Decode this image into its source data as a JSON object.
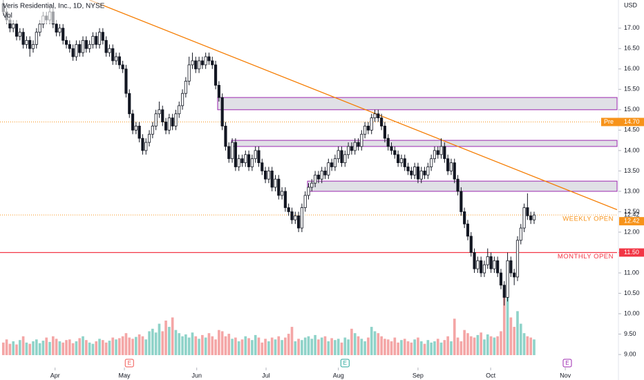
{
  "chart_data": {
    "type": "candlestick",
    "title": "Veris Residential, Inc., 1D, NYSE",
    "volume_title": "Vol",
    "y_axis_label": "USD",
    "up_color": "#ffffff",
    "down_color": "#131722",
    "volume_up_color": "#8fd3c9",
    "volume_down_color": "#f4a6a6",
    "xlim": [
      -1,
      185
    ],
    "ylim": [
      8.68,
      17.69
    ],
    "xticks": [
      {
        "value": 15.6,
        "label": "Apr"
      },
      {
        "value": 36.5,
        "label": "May"
      },
      {
        "value": 58.3,
        "label": "Jun"
      },
      {
        "value": 79.2,
        "label": "Jul"
      },
      {
        "value": 101,
        "label": "Aug"
      },
      {
        "value": 125,
        "label": "Sep"
      },
      {
        "value": 146.9,
        "label": "Oct"
      },
      {
        "value": 169.4,
        "label": "Nov"
      }
    ],
    "yticks": [
      {
        "value": 9,
        "label": "9.00"
      },
      {
        "value": 9.5,
        "label": "9.50"
      },
      {
        "value": 10,
        "label": "10.00"
      },
      {
        "value": 10.5,
        "label": "10.50"
      },
      {
        "value": 11,
        "label": "11.00"
      },
      {
        "value": 11.5,
        "label": "11.50"
      },
      {
        "value": 12,
        "label": "12.00"
      },
      {
        "value": 12.5,
        "label": "12.50"
      },
      {
        "value": 13,
        "label": "13.00"
      },
      {
        "value": 13.5,
        "label": "13.50"
      },
      {
        "value": 14,
        "label": "14.00"
      },
      {
        "value": 14.5,
        "label": "14.50"
      },
      {
        "value": 15,
        "label": "15.00"
      },
      {
        "value": 15.5,
        "label": "15.50"
      },
      {
        "value": 16,
        "label": "16.00"
      },
      {
        "value": 16.5,
        "label": "16.50"
      },
      {
        "value": 17,
        "label": "17.00"
      }
    ],
    "values": [
      [
        17.6,
        17.7,
        17.3,
        17.4
      ],
      [
        17.4,
        17.5,
        17.1,
        17.2
      ],
      [
        17.2,
        17.3,
        16.9,
        17.0
      ],
      [
        17.0,
        17.2,
        16.9,
        17.1
      ],
      [
        17.1,
        17.2,
        16.7,
        16.8
      ],
      [
        16.8,
        17.0,
        16.7,
        16.9
      ],
      [
        16.9,
        17.0,
        16.5,
        16.6
      ],
      [
        16.6,
        16.8,
        16.5,
        16.7
      ],
      [
        16.7,
        16.8,
        16.3,
        16.5
      ],
      [
        16.5,
        16.7,
        16.4,
        16.6
      ],
      [
        16.6,
        17.0,
        16.5,
        16.9
      ],
      [
        16.9,
        17.2,
        16.8,
        17.1
      ],
      [
        17.1,
        17.4,
        17.0,
        17.3
      ],
      [
        17.3,
        17.4,
        17.1,
        17.2
      ],
      [
        17.2,
        17.6,
        17.1,
        17.4
      ],
      [
        17.4,
        17.5,
        17.0,
        17.1
      ],
      [
        17.1,
        17.2,
        16.8,
        16.9
      ],
      [
        16.9,
        17.1,
        16.8,
        17.0
      ],
      [
        17.0,
        17.1,
        16.6,
        16.7
      ],
      [
        16.7,
        16.8,
        16.5,
        16.6
      ],
      [
        16.6,
        16.7,
        16.4,
        16.5
      ],
      [
        16.5,
        16.6,
        16.2,
        16.3
      ],
      [
        16.3,
        16.7,
        16.2,
        16.6
      ],
      [
        16.6,
        16.7,
        16.3,
        16.4
      ],
      [
        16.4,
        16.8,
        16.3,
        16.7
      ],
      [
        16.7,
        16.8,
        16.4,
        16.5
      ],
      [
        16.5,
        16.7,
        16.4,
        16.6
      ],
      [
        16.6,
        16.9,
        16.5,
        16.8
      ],
      [
        16.8,
        16.9,
        16.5,
        16.6
      ],
      [
        16.6,
        17.0,
        16.5,
        16.9
      ],
      [
        16.9,
        17.0,
        16.6,
        16.7
      ],
      [
        16.7,
        16.8,
        16.3,
        16.4
      ],
      [
        16.4,
        16.6,
        16.3,
        16.5
      ],
      [
        16.5,
        16.6,
        16.1,
        16.2
      ],
      [
        16.2,
        16.4,
        16.1,
        16.3
      ],
      [
        16.3,
        16.4,
        16.0,
        16.1
      ],
      [
        16.1,
        16.2,
        15.9,
        16.0
      ],
      [
        16.0,
        16.1,
        15.3,
        15.4
      ],
      [
        15.4,
        15.5,
        14.8,
        14.9
      ],
      [
        14.9,
        15.0,
        14.4,
        14.5
      ],
      [
        14.5,
        14.7,
        14.4,
        14.6
      ],
      [
        14.6,
        14.7,
        14.2,
        14.3
      ],
      [
        14.3,
        14.4,
        13.9,
        14.0
      ],
      [
        14.0,
        14.3,
        13.9,
        14.2
      ],
      [
        14.2,
        14.5,
        14.1,
        14.4
      ],
      [
        14.4,
        14.7,
        14.3,
        14.6
      ],
      [
        14.6,
        15.0,
        14.5,
        14.9
      ],
      [
        14.9,
        15.2,
        14.8,
        15.0
      ],
      [
        15.0,
        15.1,
        14.6,
        14.7
      ],
      [
        14.7,
        14.8,
        14.4,
        14.5
      ],
      [
        14.5,
        14.9,
        14.4,
        14.8
      ],
      [
        14.8,
        14.9,
        14.5,
        14.6
      ],
      [
        14.6,
        15.0,
        14.5,
        14.9
      ],
      [
        14.9,
        15.2,
        14.8,
        15.1
      ],
      [
        15.1,
        15.5,
        15.0,
        15.4
      ],
      [
        15.4,
        15.8,
        15.3,
        15.7
      ],
      [
        15.7,
        16.3,
        15.6,
        16.1
      ],
      [
        16.1,
        16.4,
        16.0,
        16.2
      ],
      [
        16.2,
        16.3,
        15.9,
        16.0
      ],
      [
        16.0,
        16.3,
        15.9,
        16.2
      ],
      [
        16.2,
        16.3,
        16.0,
        16.1
      ],
      [
        16.1,
        16.4,
        16.0,
        16.3
      ],
      [
        16.3,
        16.4,
        16.1,
        16.2
      ],
      [
        16.2,
        16.3,
        16.0,
        16.1
      ],
      [
        16.1,
        16.2,
        15.5,
        15.6
      ],
      [
        15.6,
        15.7,
        15.2,
        15.3
      ],
      [
        15.3,
        15.4,
        14.5,
        14.6
      ],
      [
        14.6,
        14.7,
        14.0,
        14.1
      ],
      [
        14.1,
        14.2,
        13.7,
        13.8
      ],
      [
        13.8,
        14.3,
        13.7,
        14.2
      ],
      [
        14.2,
        14.3,
        13.5,
        13.6
      ],
      [
        13.6,
        13.9,
        13.5,
        13.8
      ],
      [
        13.8,
        13.9,
        13.6,
        13.7
      ],
      [
        13.7,
        14.0,
        13.6,
        13.9
      ],
      [
        13.9,
        14.0,
        13.5,
        13.6
      ],
      [
        13.6,
        13.9,
        13.5,
        13.8
      ],
      [
        13.8,
        14.1,
        13.7,
        14.0
      ],
      [
        14.0,
        14.1,
        13.6,
        13.7
      ],
      [
        13.7,
        13.8,
        13.4,
        13.5
      ],
      [
        13.5,
        13.6,
        13.2,
        13.3
      ],
      [
        13.3,
        13.6,
        13.2,
        13.5
      ],
      [
        13.5,
        13.6,
        13.0,
        13.1
      ],
      [
        13.1,
        13.4,
        13.0,
        13.3
      ],
      [
        13.3,
        13.4,
        12.8,
        12.9
      ],
      [
        12.9,
        13.1,
        12.8,
        13.0
      ],
      [
        13.0,
        13.1,
        12.5,
        12.6
      ],
      [
        12.6,
        12.7,
        12.4,
        12.5
      ],
      [
        12.5,
        12.6,
        12.2,
        12.3
      ],
      [
        12.3,
        12.5,
        12.2,
        12.4
      ],
      [
        12.4,
        12.5,
        12.0,
        12.1
      ],
      [
        12.1,
        12.7,
        12.0,
        12.6
      ],
      [
        12.6,
        13.0,
        12.5,
        12.9
      ],
      [
        12.9,
        13.2,
        12.8,
        13.1
      ],
      [
        13.1,
        13.3,
        13.0,
        13.2
      ],
      [
        13.2,
        13.5,
        13.1,
        13.4
      ],
      [
        13.4,
        13.5,
        13.2,
        13.3
      ],
      [
        13.3,
        13.6,
        13.2,
        13.5
      ],
      [
        13.5,
        13.6,
        13.3,
        13.4
      ],
      [
        13.4,
        13.8,
        13.3,
        13.7
      ],
      [
        13.7,
        13.8,
        13.5,
        13.6
      ],
      [
        13.6,
        13.9,
        13.5,
        13.8
      ],
      [
        13.8,
        14.1,
        13.7,
        14.0
      ],
      [
        14.0,
        14.1,
        13.6,
        13.7
      ],
      [
        13.7,
        14.0,
        13.6,
        13.9
      ],
      [
        13.9,
        14.2,
        13.8,
        14.1
      ],
      [
        14.1,
        14.2,
        13.9,
        14.0
      ],
      [
        14.0,
        14.3,
        13.9,
        14.2
      ],
      [
        14.2,
        14.3,
        14.0,
        14.1
      ],
      [
        14.1,
        14.5,
        14.0,
        14.4
      ],
      [
        14.4,
        14.7,
        14.3,
        14.6
      ],
      [
        14.6,
        14.7,
        14.4,
        14.5
      ],
      [
        14.5,
        14.9,
        14.4,
        14.8
      ],
      [
        14.8,
        15.0,
        14.7,
        14.9
      ],
      [
        14.9,
        15.0,
        14.7,
        14.8
      ],
      [
        14.8,
        14.9,
        14.5,
        14.6
      ],
      [
        14.6,
        14.7,
        14.2,
        14.3
      ],
      [
        14.3,
        14.4,
        14.0,
        14.1
      ],
      [
        14.1,
        14.2,
        13.9,
        14.0
      ],
      [
        14.0,
        14.1,
        13.8,
        13.9
      ],
      [
        13.9,
        14.0,
        13.6,
        13.7
      ],
      [
        13.7,
        13.9,
        13.6,
        13.8
      ],
      [
        13.8,
        13.9,
        13.5,
        13.6
      ],
      [
        13.6,
        13.7,
        13.4,
        13.5
      ],
      [
        13.5,
        13.6,
        13.3,
        13.4
      ],
      [
        13.4,
        13.7,
        13.3,
        13.6
      ],
      [
        13.6,
        13.7,
        13.2,
        13.3
      ],
      [
        13.3,
        13.6,
        13.2,
        13.5
      ],
      [
        13.5,
        13.6,
        13.3,
        13.4
      ],
      [
        13.4,
        13.7,
        13.3,
        13.6
      ],
      [
        13.6,
        13.9,
        13.5,
        13.8
      ],
      [
        13.8,
        14.1,
        13.7,
        14.0
      ],
      [
        14.0,
        14.1,
        13.8,
        13.9
      ],
      [
        13.9,
        14.3,
        13.8,
        14.1
      ],
      [
        14.1,
        14.2,
        13.7,
        13.8
      ],
      [
        13.8,
        13.9,
        13.4,
        13.5
      ],
      [
        13.5,
        13.8,
        13.4,
        13.7
      ],
      [
        13.7,
        13.8,
        13.2,
        13.3
      ],
      [
        13.3,
        13.4,
        12.9,
        13.0
      ],
      [
        13.0,
        13.1,
        12.4,
        12.5
      ],
      [
        12.5,
        12.6,
        12.1,
        12.2
      ],
      [
        12.2,
        12.3,
        11.8,
        11.9
      ],
      [
        11.9,
        12.0,
        11.4,
        11.5
      ],
      [
        11.5,
        11.6,
        11.0,
        11.1
      ],
      [
        11.1,
        11.4,
        11.0,
        11.3
      ],
      [
        11.3,
        11.4,
        10.9,
        11.0
      ],
      [
        11.0,
        11.3,
        10.9,
        11.2
      ],
      [
        11.2,
        11.6,
        11.1,
        11.4
      ],
      [
        11.4,
        11.5,
        11.0,
        11.1
      ],
      [
        11.1,
        11.4,
        11.0,
        11.3
      ],
      [
        11.3,
        11.4,
        10.9,
        11.0
      ],
      [
        11.0,
        11.1,
        10.6,
        10.7
      ],
      [
        10.7,
        10.8,
        10.2,
        10.4
      ],
      [
        10.4,
        11.5,
        10.3,
        11.3
      ],
      [
        11.3,
        11.4,
        10.9,
        11.0
      ],
      [
        11.0,
        11.1,
        10.7,
        10.9
      ],
      [
        10.9,
        11.9,
        10.8,
        11.8
      ],
      [
        11.8,
        12.2,
        11.7,
        12.1
      ],
      [
        12.1,
        12.7,
        12.0,
        12.6
      ],
      [
        12.6,
        12.95,
        12.3,
        12.4
      ],
      [
        12.4,
        12.5,
        12.2,
        12.3
      ],
      [
        12.3,
        12.5,
        12.2,
        12.42
      ]
    ],
    "volumes": [
      20,
      25,
      18,
      22,
      17,
      24,
      30,
      20,
      18,
      22,
      25,
      19,
      23,
      28,
      21,
      30,
      26,
      22,
      20,
      24,
      25,
      19,
      22,
      27,
      30,
      24,
      20,
      18,
      22,
      26,
      24,
      20,
      23,
      28,
      25,
      27,
      30,
      35,
      28,
      26,
      29,
      33,
      30,
      25,
      38,
      42,
      36,
      50,
      38,
      55,
      45,
      60,
      40,
      35,
      30,
      33,
      28,
      36,
      30,
      26,
      32,
      28,
      35,
      30,
      25,
      40,
      38,
      30,
      34,
      26,
      28,
      22,
      25,
      30,
      27,
      24,
      32,
      28,
      20,
      26,
      22,
      28,
      25,
      30,
      24,
      28,
      34,
      45,
      22,
      26,
      24,
      28,
      30,
      26,
      32,
      25,
      28,
      30,
      22,
      27,
      24,
      26,
      20,
      28,
      25,
      42,
      35,
      30,
      26,
      22,
      28,
      45,
      38,
      35,
      30,
      26,
      25,
      22,
      28,
      20,
      24,
      26,
      22,
      20,
      25,
      28,
      22,
      18,
      24,
      20,
      22,
      26,
      20,
      24,
      30,
      22,
      58,
      28,
      22,
      40,
      35,
      30,
      28,
      32,
      36,
      25,
      33,
      30,
      28,
      30,
      38,
      110,
      92,
      60,
      45,
      70,
      50,
      35,
      30,
      28,
      25
    ],
    "zones": [
      {
        "top": 15.3,
        "bottom": 15.0,
        "start": 64.6
      },
      {
        "top": 14.25,
        "bottom": 14.1,
        "start": 68.8
      },
      {
        "top": 13.25,
        "bottom": 13.0,
        "start": 91.7
      }
    ],
    "zone_color": "#9c27b0",
    "trend_line": {
      "x": [
        26,
        185
      ],
      "y": [
        17.69,
        12.55
      ],
      "color": "#f57c00"
    },
    "levels": [
      {
        "name": "WEEKLY OPEN",
        "value": 12.42,
        "label": "12.42",
        "color": "#f7931a",
        "style": "dotted"
      },
      {
        "name": "MONTHLY OPEN",
        "value": 11.5,
        "label": "11.50",
        "color": "#f23645",
        "style": "solid"
      },
      {
        "name": "Pre",
        "value": 14.7,
        "label": "14.70",
        "color": "#f7931a",
        "style": "dotted"
      }
    ],
    "last_price": {
      "value": 12.42,
      "label": "12.42"
    },
    "events": [
      {
        "x": 38,
        "label": "E",
        "color": "#ef5350"
      },
      {
        "x": 103,
        "label": "E",
        "color": "#26a69a"
      },
      {
        "x": 170,
        "label": "E",
        "color": "#9c27b0"
      }
    ]
  }
}
